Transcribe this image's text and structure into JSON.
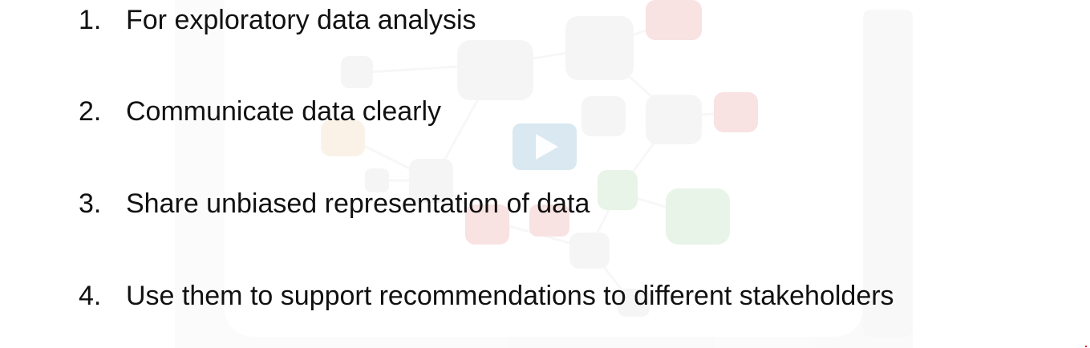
{
  "slide": {
    "items": [
      {
        "number": "1.",
        "text": "For exploratory data analysis"
      },
      {
        "number": "2.",
        "text": "Communicate data clearly"
      },
      {
        "number": "3.",
        "text": "Share unbiased representation of data"
      },
      {
        "number": "4.",
        "text": "Use them to support recommendations to different stakeholders"
      }
    ]
  },
  "overlay": {
    "play_icon": "play-icon",
    "play_button_color": "#aacde1"
  },
  "watermark": {
    "icon": "network-graph-watermark"
  }
}
